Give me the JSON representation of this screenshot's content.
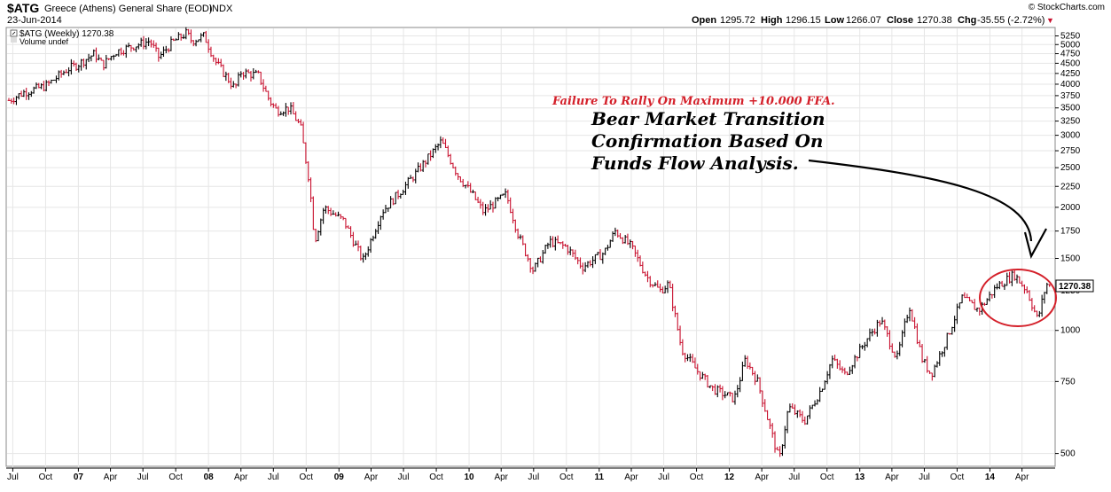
{
  "header": {
    "symbol": "$ATG",
    "name": "Greece (Athens) General Share (EOD)",
    "exchange": "INDX",
    "date": "23-Jun-2014",
    "copyright": "© StockCharts.com",
    "open_label": "Open",
    "open": "1295.72",
    "high_label": "High",
    "high": "1296.15",
    "low_label": "Low",
    "low": "1266.07",
    "close_label": "Close",
    "close": "1270.38",
    "chg_label": "Chg",
    "chg": "-35.55 (-2.72%)",
    "chg_arrow": "▼"
  },
  "legend": {
    "price": "$ATG (Weekly) 1270.38",
    "volume": "Volume undef"
  },
  "annotations": {
    "red_note": "Failure To Rally On Maximum +10.000 FFA.",
    "black_note": [
      "Bear Market Transition",
      "Confirmation Based On",
      "Funds Flow Analysis."
    ]
  },
  "colors": {
    "up": "#000000",
    "down": "#c8102e",
    "grid": "#e6e6e6",
    "circle": "#d4202a",
    "last_box": "#000000"
  },
  "chart_data": {
    "type": "line",
    "scale": "log",
    "y_ticks": [
      500,
      750,
      1000,
      1250,
      1500,
      1750,
      2000,
      2250,
      2500,
      2750,
      3000,
      3250,
      3500,
      3750,
      4000,
      4250,
      4500,
      4750,
      5000,
      5250
    ],
    "ylim": [
      470,
      5450
    ],
    "x_labels": [
      {
        "label": "Jul",
        "date": "2006-07-01"
      },
      {
        "label": "Oct",
        "date": "2006-10-01"
      },
      {
        "label": "07",
        "date": "2007-01-01",
        "bold": true
      },
      {
        "label": "Apr",
        "date": "2007-04-01"
      },
      {
        "label": "Jul",
        "date": "2007-07-01"
      },
      {
        "label": "Oct",
        "date": "2007-10-01"
      },
      {
        "label": "08",
        "date": "2008-01-01",
        "bold": true
      },
      {
        "label": "Apr",
        "date": "2008-04-01"
      },
      {
        "label": "Jul",
        "date": "2008-07-01"
      },
      {
        "label": "Oct",
        "date": "2008-10-01"
      },
      {
        "label": "09",
        "date": "2009-01-01",
        "bold": true
      },
      {
        "label": "Apr",
        "date": "2009-04-01"
      },
      {
        "label": "Jul",
        "date": "2009-07-01"
      },
      {
        "label": "Oct",
        "date": "2009-10-01"
      },
      {
        "label": "10",
        "date": "2010-01-01",
        "bold": true
      },
      {
        "label": "Apr",
        "date": "2010-04-01"
      },
      {
        "label": "Jul",
        "date": "2010-07-01"
      },
      {
        "label": "Oct",
        "date": "2010-10-01"
      },
      {
        "label": "11",
        "date": "2011-01-01",
        "bold": true
      },
      {
        "label": "Apr",
        "date": "2011-04-01"
      },
      {
        "label": "Jul",
        "date": "2011-07-01"
      },
      {
        "label": "Oct",
        "date": "2011-10-01"
      },
      {
        "label": "12",
        "date": "2012-01-01",
        "bold": true
      },
      {
        "label": "Apr",
        "date": "2012-04-01"
      },
      {
        "label": "Jul",
        "date": "2012-07-01"
      },
      {
        "label": "Oct",
        "date": "2012-10-01"
      },
      {
        "label": "13",
        "date": "2013-01-01",
        "bold": true
      },
      {
        "label": "Apr",
        "date": "2013-04-01"
      },
      {
        "label": "Jul",
        "date": "2013-07-01"
      },
      {
        "label": "Oct",
        "date": "2013-10-01"
      },
      {
        "label": "14",
        "date": "2014-01-01",
        "bold": true
      },
      {
        "label": "Apr",
        "date": "2014-04-01"
      }
    ],
    "x_start": "2006-06-20",
    "x_end": "2014-06-23",
    "last_value": "1270.38",
    "series": [
      {
        "points": [
          [
            "2006-06-20",
            3650
          ],
          [
            "2006-08-01",
            3820
          ],
          [
            "2006-10-01",
            3960
          ],
          [
            "2006-12-01",
            4350
          ],
          [
            "2007-01-01",
            4480
          ],
          [
            "2007-02-15",
            4750
          ],
          [
            "2007-03-10",
            4450
          ],
          [
            "2007-04-15",
            4800
          ],
          [
            "2007-06-01",
            4950
          ],
          [
            "2007-07-20",
            5100
          ],
          [
            "2007-08-15",
            4650
          ],
          [
            "2007-09-20",
            5050
          ],
          [
            "2007-10-31",
            5330
          ],
          [
            "2007-11-15",
            5100
          ],
          [
            "2007-12-20",
            5250
          ],
          [
            "2008-01-20",
            4550
          ],
          [
            "2008-03-15",
            3900
          ],
          [
            "2008-04-01",
            4280
          ],
          [
            "2008-05-20",
            4200
          ],
          [
            "2008-06-20",
            3650
          ],
          [
            "2008-07-10",
            3450
          ],
          [
            "2008-08-15",
            3500
          ],
          [
            "2008-09-15",
            3150
          ],
          [
            "2008-10-10",
            2300
          ],
          [
            "2008-10-25",
            1650
          ],
          [
            "2008-11-20",
            2000
          ],
          [
            "2009-01-15",
            1850
          ],
          [
            "2009-03-09",
            1480
          ],
          [
            "2009-05-01",
            1950
          ],
          [
            "2009-06-15",
            2150
          ],
          [
            "2009-08-01",
            2400
          ],
          [
            "2009-10-15",
            2900
          ],
          [
            "2009-11-30",
            2400
          ],
          [
            "2010-01-10",
            2150
          ],
          [
            "2010-02-10",
            1950
          ],
          [
            "2010-04-15",
            2150
          ],
          [
            "2010-05-20",
            1700
          ],
          [
            "2010-06-30",
            1400
          ],
          [
            "2010-08-15",
            1650
          ],
          [
            "2010-10-01",
            1600
          ],
          [
            "2010-11-15",
            1430
          ],
          [
            "2011-01-15",
            1550
          ],
          [
            "2011-02-15",
            1750
          ],
          [
            "2011-04-01",
            1600
          ],
          [
            "2011-05-15",
            1350
          ],
          [
            "2011-06-20",
            1250
          ],
          [
            "2011-07-15",
            1300
          ],
          [
            "2011-08-20",
            900
          ],
          [
            "2011-10-01",
            800
          ],
          [
            "2011-11-15",
            720
          ],
          [
            "2012-01-15",
            680
          ],
          [
            "2012-02-15",
            850
          ],
          [
            "2012-03-20",
            750
          ],
          [
            "2012-05-20",
            480
          ],
          [
            "2012-06-15",
            650
          ],
          [
            "2012-07-30",
            600
          ],
          [
            "2012-09-15",
            720
          ],
          [
            "2012-10-15",
            850
          ],
          [
            "2012-11-20",
            780
          ],
          [
            "2013-01-20",
            950
          ],
          [
            "2013-03-01",
            1060
          ],
          [
            "2013-04-15",
            850
          ],
          [
            "2013-05-20",
            1150
          ],
          [
            "2013-06-25",
            850
          ],
          [
            "2013-07-20",
            780
          ],
          [
            "2013-09-01",
            950
          ],
          [
            "2013-10-15",
            1200
          ],
          [
            "2013-12-01",
            1120
          ],
          [
            "2014-01-20",
            1280
          ],
          [
            "2014-03-10",
            1370
          ],
          [
            "2014-04-15",
            1250
          ],
          [
            "2014-05-15",
            1060
          ],
          [
            "2014-06-08",
            1300
          ],
          [
            "2014-06-23",
            1270
          ]
        ]
      }
    ]
  }
}
